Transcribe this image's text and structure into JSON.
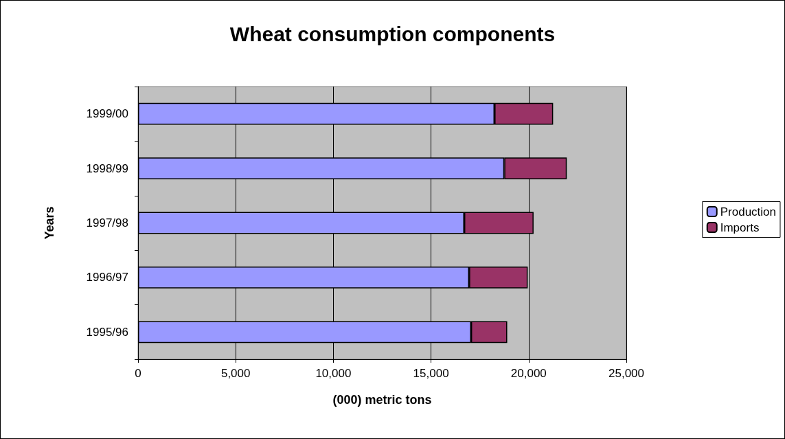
{
  "chart_data": {
    "type": "bar",
    "orientation": "horizontal",
    "stacked": true,
    "title": "Wheat consumption components",
    "xlabel": "(000) metric tons",
    "ylabel": "Years",
    "categories": [
      "1999/00",
      "1998/99",
      "1997/98",
      "1996/97",
      "1995/96"
    ],
    "series": [
      {
        "name": "Production",
        "color": "#9999ff",
        "values": [
          18250,
          18750,
          16700,
          16950,
          17050
        ]
      },
      {
        "name": "Imports",
        "color": "#993366",
        "values": [
          3000,
          3200,
          3550,
          3000,
          1850
        ]
      }
    ],
    "xlim": [
      0,
      25000
    ],
    "xticks": [
      {
        "value": 0,
        "label": "0"
      },
      {
        "value": 5000,
        "label": "5,000"
      },
      {
        "value": 10000,
        "label": "10,000"
      },
      {
        "value": 15000,
        "label": "15,000"
      },
      {
        "value": 20000,
        "label": "20,000"
      },
      {
        "value": 25000,
        "label": "25,000"
      }
    ],
    "grid": "x",
    "legend": "right"
  }
}
